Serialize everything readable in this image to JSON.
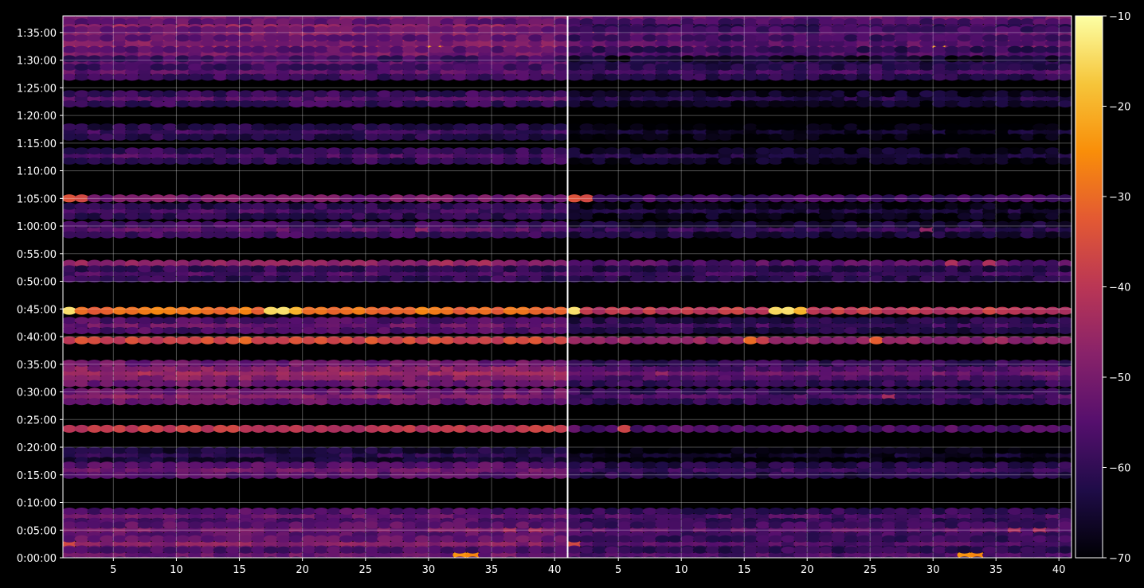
{
  "chart_data": {
    "type": "heatmap",
    "title": "",
    "xlabel": "",
    "ylabel": "",
    "panels": [
      {
        "name": "",
        "xlim": [
          1,
          40
        ],
        "x_ticks": [
          5,
          10,
          15,
          20,
          25,
          30,
          35,
          40
        ],
        "x_tick_labels": [
          "5",
          "10",
          "15",
          "20",
          "25",
          "30",
          "35",
          "40"
        ]
      },
      {
        "name": "",
        "xlim": [
          1,
          40
        ],
        "x_ticks": [
          5,
          10,
          15,
          20,
          25,
          30,
          35,
          40
        ],
        "x_tick_labels": [
          "5",
          "10",
          "15",
          "20",
          "25",
          "30",
          "35",
          "40"
        ]
      }
    ],
    "y_axis": {
      "unit": "seconds",
      "range": [
        0,
        5880
      ],
      "tick_values": [
        0,
        300,
        600,
        900,
        1200,
        1500,
        1800,
        2100,
        2400,
        2700,
        3000,
        3300,
        3600,
        3900,
        4200,
        4500,
        4800,
        5100,
        5400,
        5700
      ],
      "tick_labels": [
        "0:00:00",
        "0:05:00",
        "0:10:00",
        "0:15:00",
        "0:20:00",
        "0:25:00",
        "0:30:00",
        "0:35:00",
        "0:40:00",
        "0:45:00",
        "0:50:00",
        "0:55:00",
        "1:00:00",
        "1:05:00",
        "1:10:00",
        "1:15:00",
        "1:20:00",
        "1:25:00",
        "1:30:00",
        "1:35:00"
      ]
    },
    "colorbar": {
      "colormap": "inferno",
      "range": [
        -70,
        -10
      ],
      "ticks": [
        -10,
        -20,
        -30,
        -40,
        -50,
        -60,
        -70
      ],
      "tick_labels": [
        "−10",
        "−20",
        "−30",
        "−40",
        "−50",
        "−60",
        "−70"
      ]
    },
    "grid": true,
    "background": "#000000",
    "bands": [
      {
        "t": 5850,
        "level_left": -50,
        "level_right": -52,
        "hot": [],
        "spread": 0
      },
      {
        "t": 5760,
        "level_left": -49,
        "level_right": -53,
        "hot": [
          [
            30,
            -44
          ]
        ],
        "spread": 1
      },
      {
        "t": 5700,
        "level_left": -42,
        "level_right": -56,
        "hot": [
          [
            1,
            -37
          ],
          [
            3,
            -38
          ]
        ],
        "spread": 1
      },
      {
        "t": 5620,
        "level_left": -44,
        "level_right": -50,
        "hot": [
          [
            8,
            -41
          ],
          [
            36,
            -43
          ]
        ],
        "spread": 2
      },
      {
        "t": 5530,
        "level_left": -45,
        "level_right": -50,
        "hot": [
          [
            30,
            -22
          ]
        ],
        "spread": 2
      },
      {
        "t": 5460,
        "level_left": -50,
        "level_right": -56,
        "hot": [],
        "spread": 1
      },
      {
        "t": 5360,
        "level_left": -54,
        "level_right": -62,
        "hot": [],
        "spread": 1
      },
      {
        "t": 5270,
        "level_left": -54,
        "level_right": -57,
        "hot": [],
        "spread": 1
      },
      {
        "t": 4980,
        "level_left": -55,
        "level_right": -62,
        "hot": [],
        "spread": 1
      },
      {
        "t": 4620,
        "level_left": -58,
        "level_right": -66,
        "hot": [],
        "spread": 1
      },
      {
        "t": 4360,
        "level_left": -56,
        "level_right": -63,
        "hot": [],
        "spread": 1
      },
      {
        "t": 3900,
        "level_left": -50,
        "level_right": -58,
        "hot": [
          [
            1,
            -34
          ],
          [
            2,
            -36
          ]
        ],
        "spread": 0
      },
      {
        "t": 3760,
        "level_left": -57,
        "level_right": -64,
        "hot": [],
        "spread": 1
      },
      {
        "t": 3560,
        "level_left": -54,
        "level_right": -60,
        "hot": [
          [
            29,
            -46
          ]
        ],
        "spread": 1
      },
      {
        "t": 3190,
        "level_left": -47,
        "level_right": -55,
        "hot": [
          [
            31,
            -42
          ],
          [
            34,
            -42
          ]
        ],
        "spread": 0
      },
      {
        "t": 3080,
        "level_left": -56,
        "level_right": -58,
        "hot": [],
        "spread": 1
      },
      {
        "t": 2680,
        "level_left": -30,
        "level_right": -40,
        "hot": [
          [
            1,
            -14
          ],
          [
            17,
            -15
          ],
          [
            18,
            -14
          ],
          [
            19,
            -20
          ]
        ],
        "spread": 0
      },
      {
        "t": 2520,
        "level_left": -52,
        "level_right": -58,
        "hot": [],
        "spread": 1
      },
      {
        "t": 2360,
        "level_left": -37,
        "level_right": -47,
        "hot": [
          [
            15,
            -30
          ],
          [
            16,
            -31
          ],
          [
            25,
            -32
          ],
          [
            16,
            -38
          ]
        ],
        "spread": 0
      },
      {
        "t": 2000,
        "level_left": -44,
        "level_right": -52,
        "hot": [
          [
            8,
            -45
          ]
        ],
        "spread": 2
      },
      {
        "t": 1750,
        "level_left": -48,
        "level_right": -56,
        "hot": [
          [
            26,
            -43
          ]
        ],
        "spread": 1
      },
      {
        "t": 1400,
        "level_left": -40,
        "level_right": -56,
        "hot": [
          [
            5,
            -37
          ]
        ],
        "spread": 0
      },
      {
        "t": 1110,
        "level_left": -60,
        "level_right": -66,
        "hot": [],
        "spread": 1
      },
      {
        "t": 950,
        "level_left": -51,
        "level_right": -58,
        "hot": [],
        "spread": 1
      },
      {
        "t": 450,
        "level_left": -52,
        "level_right": -56,
        "hot": [],
        "spread": 1
      },
      {
        "t": 300,
        "level_left": -50,
        "level_right": -54,
        "hot": [
          [
            36,
            -42
          ],
          [
            38,
            -42
          ]
        ],
        "spread": 1
      },
      {
        "t": 150,
        "level_left": -48,
        "level_right": -55,
        "hot": [
          [
            1,
            -36
          ]
        ],
        "spread": 1
      },
      {
        "t": 30,
        "level_left": -52,
        "level_right": -56,
        "hot": [
          [
            32,
            -24
          ],
          [
            33,
            -26
          ]
        ],
        "spread": 1
      }
    ]
  }
}
